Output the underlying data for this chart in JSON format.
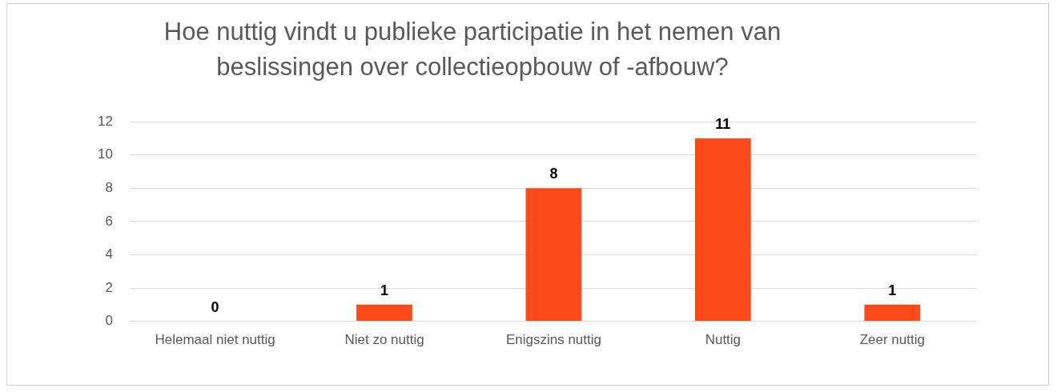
{
  "chart_data": {
    "type": "bar",
    "title": "Hoe nuttig vindt u publieke participatie in het nemen van beslissingen over collectieopbouw of -afbouw?",
    "categories": [
      "Helemaal niet nuttig",
      "Niet zo nuttig",
      "Enigszins nuttig",
      "Nuttig",
      "Zeer nuttig"
    ],
    "values": [
      0,
      1,
      8,
      11,
      1
    ],
    "color": "#fc4a1a",
    "ylim": [
      0,
      12
    ],
    "yticks": [
      0,
      2,
      4,
      6,
      8,
      10,
      12
    ],
    "grid": "y",
    "data_labels": true,
    "legend": false
  }
}
